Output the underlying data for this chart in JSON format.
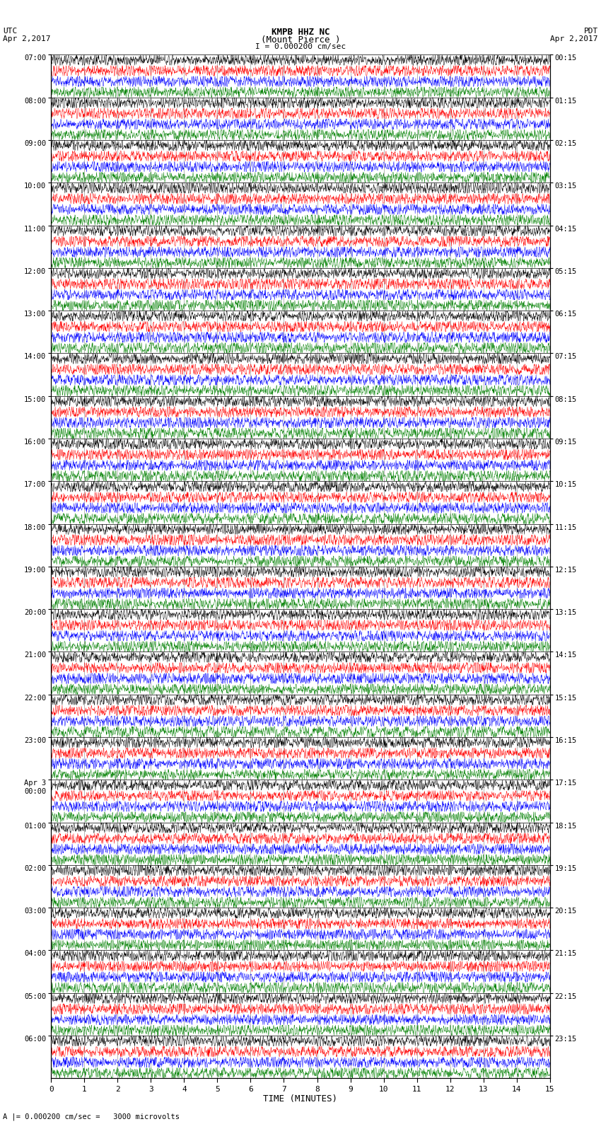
{
  "title_line1": "KMPB HHZ NC",
  "title_line2": "(Mount Pierce )",
  "title_scale": "I = 0.000200 cm/sec",
  "left_label_top": "UTC",
  "left_label_bot": "Apr 2,2017",
  "right_label_top": "PDT",
  "right_label_bot": "Apr 2,2017",
  "left_times": [
    "07:00",
    "08:00",
    "09:00",
    "10:00",
    "11:00",
    "12:00",
    "13:00",
    "14:00",
    "15:00",
    "16:00",
    "17:00",
    "18:00",
    "19:00",
    "20:00",
    "21:00",
    "22:00",
    "23:00",
    "Apr 3\n00:00",
    "01:00",
    "02:00",
    "03:00",
    "04:00",
    "05:00",
    "06:00"
  ],
  "right_times": [
    "00:15",
    "01:15",
    "02:15",
    "03:15",
    "04:15",
    "05:15",
    "06:15",
    "07:15",
    "08:15",
    "09:15",
    "10:15",
    "11:15",
    "12:15",
    "13:15",
    "14:15",
    "15:15",
    "16:15",
    "17:15",
    "18:15",
    "19:15",
    "20:15",
    "21:15",
    "22:15",
    "23:15"
  ],
  "xlabel": "TIME (MINUTES)",
  "xticks": [
    0,
    1,
    2,
    3,
    4,
    5,
    6,
    7,
    8,
    9,
    10,
    11,
    12,
    13,
    14,
    15
  ],
  "scale_label": "A |= 0.000200 cm/sec =   3000 microvolts",
  "n_hours": 24,
  "rows_per_hour": 4,
  "n_cols": 1800,
  "colors": [
    "black",
    "red",
    "blue",
    "green"
  ],
  "background": "white",
  "amplitude": 0.48,
  "freq_min": 4.0,
  "freq_max": 12.0
}
